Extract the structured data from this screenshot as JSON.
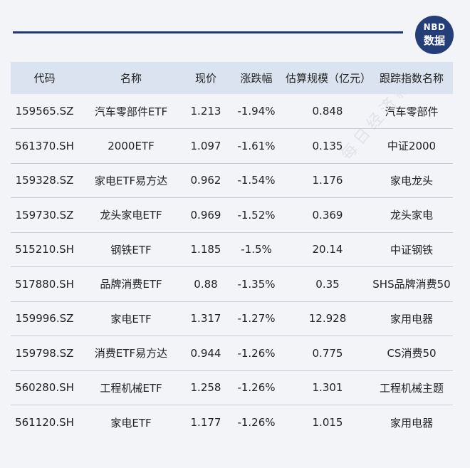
{
  "logo": {
    "line1": "NBD",
    "line2": "数据"
  },
  "table": {
    "headers": [
      "代码",
      "名称",
      "现价",
      "涨跌幅",
      "估算规模（亿元）",
      "跟踪指数名称"
    ],
    "rows": [
      [
        "159565.SZ",
        "汽车零部件ETF",
        "1.213",
        "-1.94%",
        "0.848",
        "汽车零部件"
      ],
      [
        "561370.SH",
        "2000ETF",
        "1.097",
        "-1.61%",
        "0.135",
        "中证2000"
      ],
      [
        "159328.SZ",
        "家电ETF易方达",
        "0.962",
        "-1.54%",
        "1.176",
        "家电龙头"
      ],
      [
        "159730.SZ",
        "龙头家电ETF",
        "0.969",
        "-1.52%",
        "0.369",
        "龙头家电"
      ],
      [
        "515210.SH",
        "钢铁ETF",
        "1.185",
        "-1.5%",
        "20.14",
        "中证钢铁"
      ],
      [
        "517880.SH",
        "品牌消费ETF",
        "0.88",
        "-1.35%",
        "0.35",
        "SHS品牌消费50"
      ],
      [
        "159996.SZ",
        "家电ETF",
        "1.317",
        "-1.27%",
        "12.928",
        "家用电器"
      ],
      [
        "159798.SZ",
        "消费ETF易方达",
        "0.944",
        "-1.26%",
        "0.775",
        "CS消费50"
      ],
      [
        "560280.SH",
        "工程机械ETF",
        "1.258",
        "-1.26%",
        "1.301",
        "工程机械主题"
      ],
      [
        "561120.SH",
        "家电ETF",
        "1.177",
        "-1.26%",
        "1.015",
        "家用电器"
      ]
    ]
  },
  "watermark": "每日经济新闻"
}
